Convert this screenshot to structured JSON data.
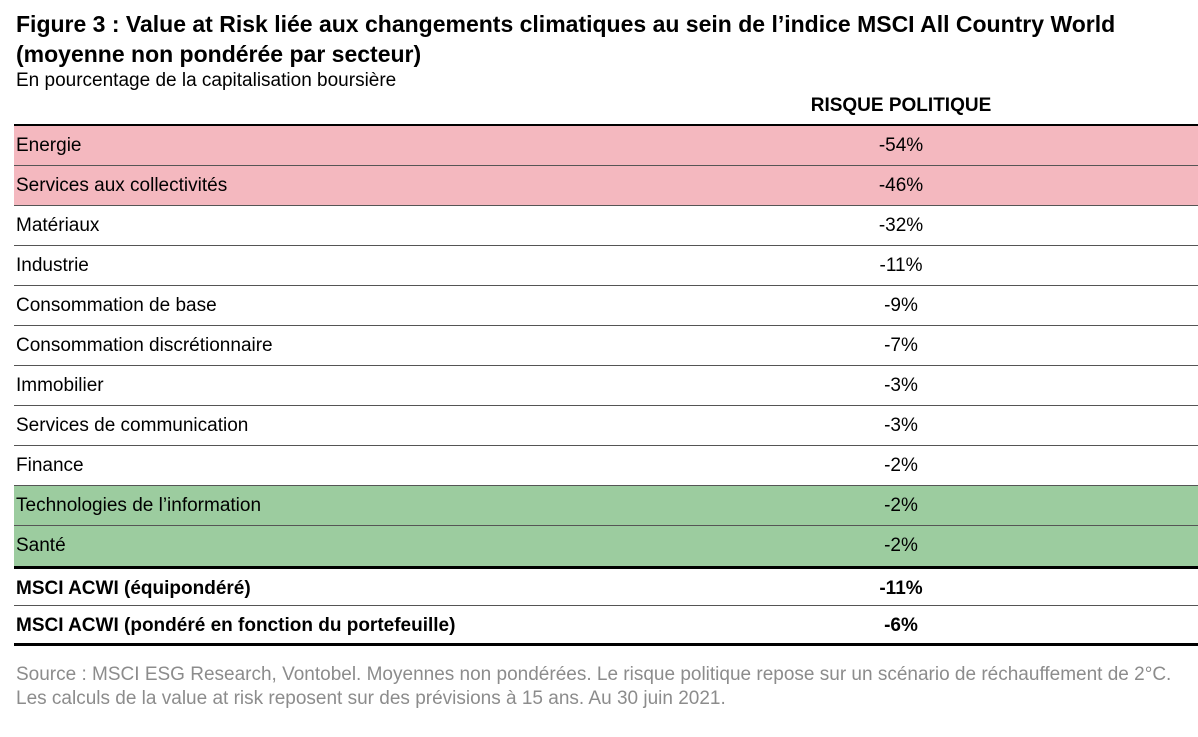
{
  "title": "Figure 3 : Value at Risk liée aux changements climatiques au sein de l’indice MSCI All Country World (moyenne non pondérée par secteur)",
  "subtitle": "En pourcentage de la capitalisation boursière",
  "source": "Source : MSCI ESG Research, Vontobel. Moyennes non pondérées. Le risque politique repose sur un scénario de réchauffement de 2°C. Les calculs de la value at risk reposent sur des prévisions à 15 ans. Au 30 juin 2021.",
  "colors": {
    "high_risk": "#f4b8bf",
    "low_risk": "#9ccc9f",
    "source_text": "#8c8c8c"
  },
  "chart_data": {
    "type": "table",
    "columns": [
      "",
      "RISQUE POLITIQUE"
    ],
    "rows": [
      {
        "sector": "Energie",
        "value": "-54%",
        "highlight": "high_risk"
      },
      {
        "sector": "Services aux collectivités",
        "value": "-46%",
        "highlight": "high_risk"
      },
      {
        "sector": "Matériaux",
        "value": "-32%",
        "highlight": ""
      },
      {
        "sector": "Industrie",
        "value": "-11%",
        "highlight": ""
      },
      {
        "sector": "Consommation de base",
        "value": "-9%",
        "highlight": ""
      },
      {
        "sector": "Consommation discrétionnaire",
        "value": "-7%",
        "highlight": ""
      },
      {
        "sector": "Immobilier",
        "value": "-3%",
        "highlight": ""
      },
      {
        "sector": "Services de communication",
        "value": "-3%",
        "highlight": ""
      },
      {
        "sector": "Finance",
        "value": "-2%",
        "highlight": ""
      },
      {
        "sector": "Technologies de l’information",
        "value": "-2%",
        "highlight": "low_risk"
      },
      {
        "sector": "Santé",
        "value": "-2%",
        "highlight": "low_risk"
      }
    ],
    "totals": [
      {
        "sector": "MSCI ACWI (équipondéré)",
        "value": "-11%"
      },
      {
        "sector": "MSCI ACWI (pondéré en fonction du portefeuille)",
        "value": "-6%"
      }
    ]
  }
}
